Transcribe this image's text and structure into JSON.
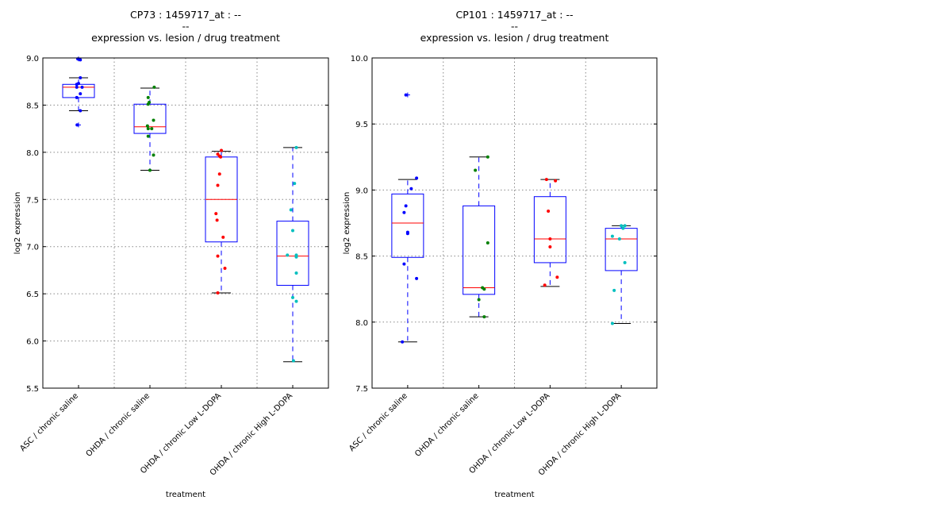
{
  "chart_data": [
    {
      "type": "box",
      "title_lines": [
        "CP73 : 1459717_at : --",
        "--",
        "expression vs. lesion / drug treatment"
      ],
      "xlabel": "treatment",
      "ylabel": "log2 expression",
      "ylim": [
        5.5,
        9.0
      ],
      "yticks": [
        "5.5",
        "6.0",
        "6.5",
        "7.0",
        "7.5",
        "8.0",
        "8.5",
        "9.0"
      ],
      "grid": true,
      "categories": [
        "ASC / chronic saline",
        "OHDA / chronic saline",
        "OHDA / chronic Low L-DOPA",
        "OHDA / chronic High L-DOPA"
      ],
      "boxes": [
        {
          "q1": 8.58,
          "median": 8.69,
          "q3": 8.72,
          "whislo": 8.44,
          "whishi": 8.79,
          "fliers": [
            8.99,
            8.29
          ],
          "color": "#0000ff",
          "points": [
            [
              -0.02,
              8.99
            ],
            [
              0.05,
              8.98
            ],
            [
              -0.05,
              8.72
            ],
            [
              0.0,
              8.73
            ],
            [
              -0.05,
              8.69
            ],
            [
              0.1,
              8.69
            ],
            [
              0.05,
              8.62
            ],
            [
              -0.05,
              8.58
            ],
            [
              0.05,
              8.79
            ],
            [
              0.05,
              8.44
            ],
            [
              -0.04,
              8.29
            ]
          ]
        },
        {
          "q1": 8.2,
          "median": 8.27,
          "q3": 8.51,
          "whislo": 7.81,
          "whishi": 8.68,
          "fliers": [],
          "color": "#008000",
          "points": [
            [
              0.12,
              8.69
            ],
            [
              -0.05,
              8.58
            ],
            [
              -0.02,
              8.53
            ],
            [
              -0.05,
              8.51
            ],
            [
              0.1,
              8.34
            ],
            [
              -0.07,
              8.28
            ],
            [
              -0.05,
              8.25
            ],
            [
              0.05,
              8.25
            ],
            [
              -0.05,
              8.17
            ],
            [
              0.1,
              7.97
            ],
            [
              0.0,
              7.81
            ]
          ]
        },
        {
          "q1": 7.05,
          "median": 7.5,
          "q3": 7.95,
          "whislo": 6.51,
          "whishi": 8.01,
          "fliers": [],
          "color": "#ff0000",
          "points": [
            [
              0.0,
              8.02
            ],
            [
              -0.1,
              7.98
            ],
            [
              -0.05,
              7.96
            ],
            [
              -0.02,
              7.95
            ],
            [
              -0.05,
              7.77
            ],
            [
              -0.1,
              7.65
            ],
            [
              -0.15,
              7.35
            ],
            [
              -0.12,
              7.28
            ],
            [
              0.05,
              7.1
            ],
            [
              -0.1,
              6.9
            ],
            [
              0.1,
              6.77
            ],
            [
              -0.1,
              6.51
            ]
          ]
        },
        {
          "q1": 6.59,
          "median": 6.9,
          "q3": 7.27,
          "whislo": 5.78,
          "whishi": 8.05,
          "fliers": [],
          "color": "#00bfbf",
          "points": [
            [
              0.1,
              8.05
            ],
            [
              0.05,
              7.67
            ],
            [
              -0.05,
              7.39
            ],
            [
              0.0,
              7.17
            ],
            [
              -0.15,
              6.91
            ],
            [
              0.1,
              6.91
            ],
            [
              0.1,
              6.89
            ],
            [
              0.1,
              6.72
            ],
            [
              0.0,
              6.46
            ],
            [
              0.1,
              6.42
            ],
            [
              0.02,
              5.79
            ]
          ]
        }
      ]
    },
    {
      "type": "box",
      "title_lines": [
        "CP101 : 1459717_at : --",
        "--",
        "expression vs. lesion / drug treatment"
      ],
      "xlabel": "treatment",
      "ylabel": "log2 expression",
      "ylim": [
        7.5,
        10.0
      ],
      "yticks": [
        "7.5",
        "8.0",
        "8.5",
        "9.0",
        "9.5",
        "10.0"
      ],
      "grid": true,
      "categories": [
        "ASC / chronic saline",
        "OHDA / chronic saline",
        "OHDA / chronic Low L-DOPA",
        "OHDA / chronic High L-DOPA"
      ],
      "boxes": [
        {
          "q1": 8.49,
          "median": 8.75,
          "q3": 8.97,
          "whislo": 7.85,
          "whishi": 9.08,
          "fliers": [
            9.72
          ],
          "color": "#0000ff",
          "points": [
            [
              -0.05,
              9.72
            ],
            [
              0.25,
              9.09
            ],
            [
              0.1,
              9.01
            ],
            [
              -0.05,
              8.88
            ],
            [
              -0.1,
              8.83
            ],
            [
              0.0,
              8.68
            ],
            [
              0.0,
              8.67
            ],
            [
              -0.1,
              8.44
            ],
            [
              0.25,
              8.33
            ],
            [
              -0.15,
              7.85
            ]
          ]
        },
        {
          "q1": 8.21,
          "median": 8.26,
          "q3": 8.88,
          "whislo": 8.04,
          "whishi": 9.25,
          "fliers": [],
          "color": "#008000",
          "points": [
            [
              0.25,
              9.25
            ],
            [
              -0.1,
              9.15
            ],
            [
              0.25,
              8.6
            ],
            [
              0.1,
              8.26
            ],
            [
              0.15,
              8.25
            ],
            [
              0.0,
              8.17
            ],
            [
              0.15,
              8.04
            ]
          ]
        },
        {
          "q1": 8.45,
          "median": 8.63,
          "q3": 8.95,
          "whislo": 8.27,
          "whishi": 9.08,
          "fliers": [],
          "color": "#ff0000",
          "points": [
            [
              -0.1,
              9.08
            ],
            [
              0.15,
              9.07
            ],
            [
              -0.05,
              8.84
            ],
            [
              0.0,
              8.63
            ],
            [
              0.0,
              8.57
            ],
            [
              0.2,
              8.34
            ],
            [
              -0.15,
              8.28
            ]
          ]
        },
        {
          "q1": 8.39,
          "median": 8.63,
          "q3": 8.71,
          "whislo": 7.99,
          "whishi": 8.73,
          "fliers": [],
          "color": "#00bfbf",
          "points": [
            [
              0.0,
              8.73
            ],
            [
              0.1,
              8.73
            ],
            [
              0.05,
              8.71
            ],
            [
              -0.25,
              8.65
            ],
            [
              -0.05,
              8.63
            ],
            [
              0.1,
              8.45
            ],
            [
              -0.2,
              8.24
            ],
            [
              -0.25,
              7.99
            ]
          ]
        }
      ]
    }
  ]
}
